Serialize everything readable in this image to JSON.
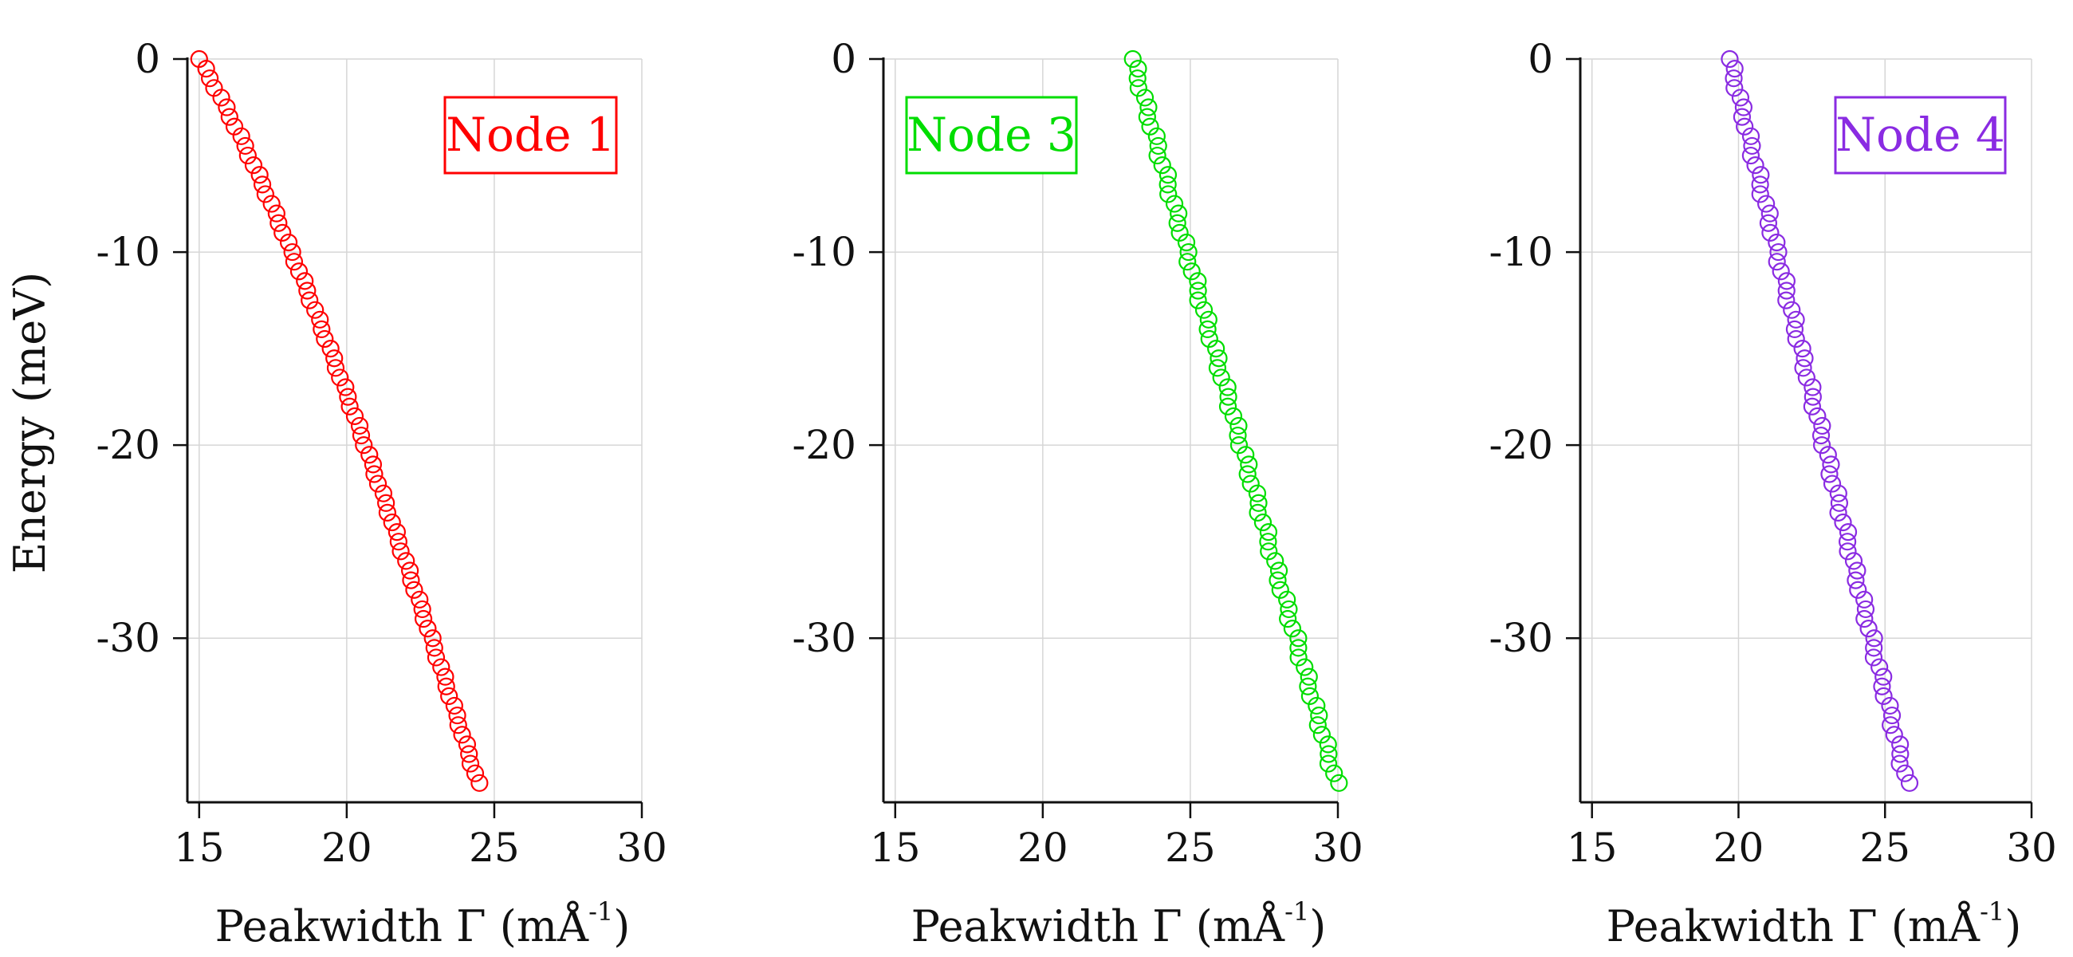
{
  "chart_data": [
    {
      "type": "scatter",
      "panel": "left",
      "legend": "Node 1",
      "legend_position": "top-right",
      "color": "#ff0000",
      "marker": "open-circle",
      "grid": true,
      "xlabel": "Peakwidth Γ (mÅ",
      "xlabel_sup": "-1",
      "xlabel_close": ")",
      "ylabel": "Energy (meV)",
      "xlim": [
        14.6,
        30
      ],
      "ylim": [
        -38.5,
        0
      ],
      "xticks": [
        15,
        20,
        25,
        30
      ],
      "yticks": [
        0,
        -10,
        -20,
        -30
      ],
      "xtick_labels": [
        "15",
        "20",
        "25",
        "30"
      ],
      "ytick_labels": [
        "0",
        "-10",
        "-20",
        "-30"
      ],
      "x_start": 15.0,
      "x_end": 24.45,
      "x_noise": 0.05,
      "y_step": 0.5,
      "y_count": 76,
      "curve": "log"
    },
    {
      "type": "scatter",
      "panel": "middle",
      "legend": "Node 3",
      "legend_position": "top-left",
      "color": "#00dd00",
      "marker": "open-circle",
      "grid": true,
      "xlabel": "Peakwidth Γ (mÅ",
      "xlabel_sup": "-1",
      "xlabel_close": ")",
      "ylabel": "",
      "xlim": [
        14.6,
        30
      ],
      "ylim": [
        -38.5,
        0
      ],
      "xticks": [
        15,
        20,
        25,
        30
      ],
      "yticks": [
        0,
        -10,
        -20,
        -30
      ],
      "xtick_labels": [
        "15",
        "20",
        "25",
        "30"
      ],
      "ytick_labels": [
        "0",
        "-10",
        "-20",
        "-30"
      ],
      "x_start": 23.05,
      "x_end": 29.95,
      "x_noise": 0.09,
      "y_step": 0.5,
      "y_count": 76,
      "curve": "linear"
    },
    {
      "type": "scatter",
      "panel": "right",
      "legend": "Node 4",
      "legend_position": "top-right",
      "color": "#8a2be2",
      "marker": "open-circle",
      "grid": true,
      "xlabel": "Peakwidth Γ (mÅ",
      "xlabel_sup": "-1",
      "xlabel_close": ")",
      "ylabel": "",
      "xlim": [
        14.6,
        30
      ],
      "ylim": [
        -38.5,
        0
      ],
      "xticks": [
        15,
        20,
        25,
        30
      ],
      "yticks": [
        0,
        -10,
        -20,
        -30
      ],
      "xtick_labels": [
        "15",
        "20",
        "25",
        "30"
      ],
      "ytick_labels": [
        "0",
        "-10",
        "-20",
        "-30"
      ],
      "x_start": 19.7,
      "x_end": 25.75,
      "x_noise": 0.09,
      "y_step": 0.5,
      "y_count": 76,
      "curve": "linear"
    }
  ]
}
